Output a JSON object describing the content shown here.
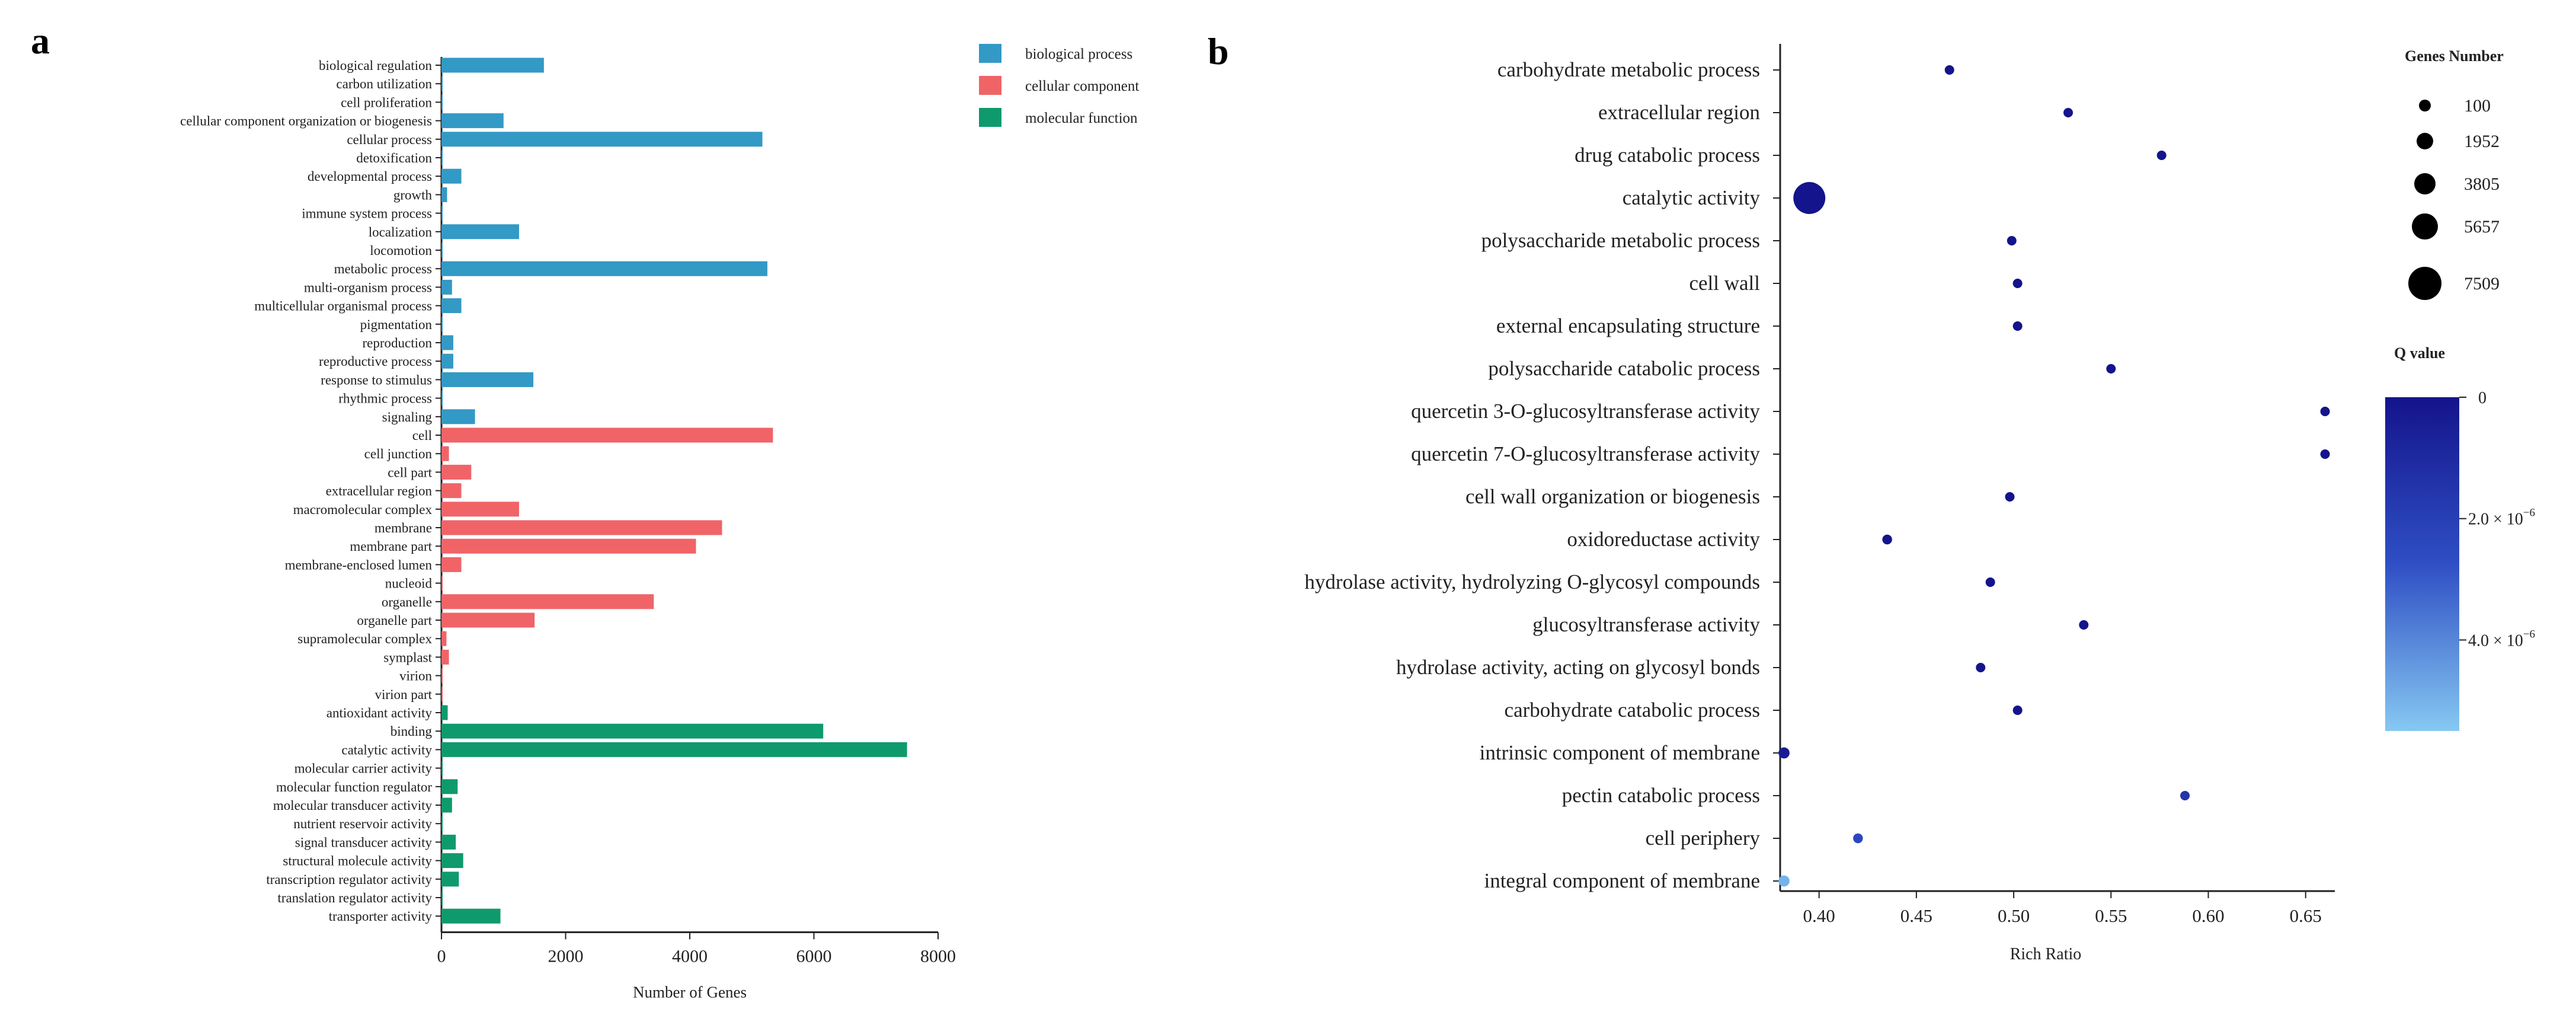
{
  "panel_labels": {
    "a": "a",
    "b": "b"
  },
  "colors": {
    "biological_process": "#3399c5",
    "cellular_component": "#f06468",
    "molecular_function": "#0f9a6e",
    "q_low": "#14148c",
    "q_high": "#86c8f2",
    "axis": "#222222"
  },
  "chart_data": [
    {
      "id": "panel-a",
      "type": "bar",
      "orientation": "horizontal",
      "title": "",
      "xlabel": "Number of Genes",
      "ylabel": "",
      "xlim": [
        0,
        8000
      ],
      "xticks": [
        0,
        2000,
        4000,
        6000,
        8000
      ],
      "legend": [
        {
          "key": "biological_process",
          "label": "biological process"
        },
        {
          "key": "cellular_component",
          "label": "cellular component"
        },
        {
          "key": "molecular_function",
          "label": "molecular function"
        }
      ],
      "legend_position": "top-right",
      "categories": [
        "biological regulation",
        "carbon utilization",
        "cell proliferation",
        "cellular component organization or biogenesis",
        "cellular process",
        "detoxification",
        "developmental process",
        "growth",
        "immune system process",
        "localization",
        "locomotion",
        "metabolic process",
        "multi-organism process",
        "multicellular organismal process",
        "pigmentation",
        "reproduction",
        "reproductive process",
        "response to stimulus",
        "rhythmic process",
        "signaling",
        "cell",
        "cell junction",
        "cell part",
        "extracellular region",
        "macromolecular complex",
        "membrane",
        "membrane part",
        "membrane-enclosed lumen",
        "nucleoid",
        "organelle",
        "organelle part",
        "supramolecular complex",
        "symplast",
        "virion",
        "virion part",
        "antioxidant activity",
        "binding",
        "catalytic activity",
        "molecular carrier activity",
        "molecular function regulator",
        "molecular transducer activity",
        "nutrient reservoir activity",
        "signal transducer activity",
        "structural molecule activity",
        "transcription regulator activity",
        "translation regulator activity",
        "transporter activity"
      ],
      "values": [
        1650,
        5,
        10,
        1000,
        5170,
        10,
        320,
        90,
        10,
        1250,
        10,
        5250,
        170,
        320,
        10,
        190,
        190,
        1480,
        10,
        540,
        5340,
        120,
        480,
        320,
        1250,
        4520,
        4100,
        320,
        15,
        3420,
        1500,
        80,
        120,
        10,
        10,
        100,
        6150,
        7500,
        10,
        260,
        170,
        15,
        230,
        350,
        280,
        15,
        950
      ],
      "groups": [
        "biological_process",
        "biological_process",
        "biological_process",
        "biological_process",
        "biological_process",
        "biological_process",
        "biological_process",
        "biological_process",
        "biological_process",
        "biological_process",
        "biological_process",
        "biological_process",
        "biological_process",
        "biological_process",
        "biological_process",
        "biological_process",
        "biological_process",
        "biological_process",
        "biological_process",
        "biological_process",
        "cellular_component",
        "cellular_component",
        "cellular_component",
        "cellular_component",
        "cellular_component",
        "cellular_component",
        "cellular_component",
        "cellular_component",
        "cellular_component",
        "cellular_component",
        "cellular_component",
        "cellular_component",
        "cellular_component",
        "cellular_component",
        "cellular_component",
        "molecular_function",
        "molecular_function",
        "molecular_function",
        "molecular_function",
        "molecular_function",
        "molecular_function",
        "molecular_function",
        "molecular_function",
        "molecular_function",
        "molecular_function",
        "molecular_function",
        "molecular_function"
      ]
    },
    {
      "id": "panel-b",
      "type": "scatter",
      "subtype": "bubble",
      "title": "",
      "xlabel": "Rich Ratio",
      "ylabel": "",
      "xlim": [
        0.38,
        0.665
      ],
      "xticks": [
        0.4,
        0.45,
        0.5,
        0.55,
        0.6,
        0.65
      ],
      "xtick_labels": [
        "0.40",
        "0.45",
        "0.50",
        "0.55",
        "0.60",
        "0.65"
      ],
      "size_legend_title": "Genes Number",
      "size_legend_values": [
        100,
        1952,
        3805,
        5657,
        7509
      ],
      "size_legend_labels": [
        "100",
        "1952",
        "3805",
        "5657",
        "7509"
      ],
      "color_legend_title": "Q value",
      "color_scale_range": [
        0,
        5.5e-06
      ],
      "color_ticks": [
        0,
        2e-06,
        4e-06
      ],
      "color_tick_labels": [
        "0",
        "2.0 × 10",
        "4.0 × 10"
      ],
      "color_tick_exponent": "−6",
      "terms": [
        "carbohydrate metabolic process",
        "extracellular region",
        "drug catabolic process",
        "catalytic activity",
        "polysaccharide metabolic process",
        "cell wall",
        "external encapsulating structure",
        "polysaccharide catabolic process",
        "quercetin 3-O-glucosyltransferase activity",
        "quercetin 7-O-glucosyltransferase activity",
        "cell wall organization or biogenesis",
        "oxidoreductase activity",
        "hydrolase activity, hydrolyzing O-glycosyl compounds",
        "glucosyltransferase activity",
        "hydrolase activity, acting on glycosyl bonds",
        "carbohydrate catabolic process",
        "intrinsic component of membrane",
        "pectin catabolic process",
        "cell periphery",
        "integral component of membrane"
      ],
      "rich_ratio": [
        0.467,
        0.528,
        0.576,
        0.395,
        0.499,
        0.502,
        0.502,
        0.55,
        0.66,
        0.66,
        0.498,
        0.435,
        0.488,
        0.536,
        0.483,
        0.502,
        0.382,
        0.588,
        0.42,
        0.382
      ],
      "genes_number": [
        500,
        200,
        200,
        7500,
        200,
        200,
        200,
        200,
        200,
        200,
        200,
        700,
        400,
        200,
        400,
        200,
        900,
        200,
        700,
        900
      ],
      "q_value": [
        0,
        0,
        0,
        0,
        0,
        0,
        0,
        0,
        0,
        0,
        0,
        0,
        0,
        0,
        0,
        0,
        4e-07,
        1.5e-06,
        2.4e-06,
        5e-06
      ]
    }
  ]
}
